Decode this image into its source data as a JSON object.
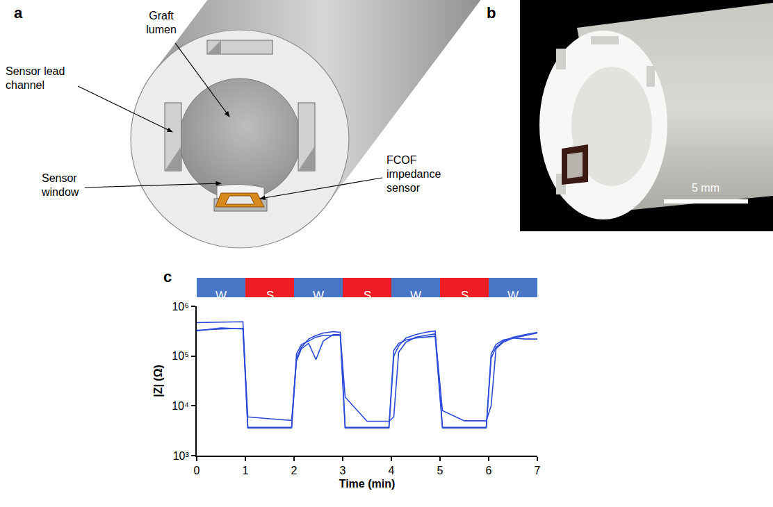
{
  "panels": {
    "a": {
      "letter": "a",
      "labels": [
        {
          "lines": [
            "Graft",
            "lumen"
          ]
        },
        {
          "lines": [
            "Sensor lead",
            "channel"
          ]
        },
        {
          "lines": [
            "Sensor",
            "window"
          ]
        },
        {
          "lines": [
            "FCOF",
            "impedance",
            "sensor"
          ]
        }
      ]
    },
    "b": {
      "letter": "b",
      "scale_bar": "5 mm"
    }
  },
  "chart_data": {
    "type": "line",
    "letter": "c",
    "x_label": "Time (min)",
    "y_label": "|Z| (Ω)",
    "log": "y",
    "grid": false,
    "xlim": [
      0,
      7
    ],
    "xticks": [
      0,
      1,
      2,
      3,
      4,
      5,
      6,
      7
    ],
    "ylim": [
      1000,
      1000000
    ],
    "yticks": [
      {
        "value": 1000,
        "label": "10³"
      },
      {
        "value": 10000,
        "label": "10⁴"
      },
      {
        "value": 100000,
        "label": "10⁵"
      },
      {
        "value": 1000000,
        "label": "10⁶"
      }
    ],
    "phases": [
      {
        "label": "W",
        "start": 0,
        "end": 1,
        "color": "#4a76c6"
      },
      {
        "label": "S",
        "start": 1,
        "end": 2,
        "color": "#ee1c25"
      },
      {
        "label": "W",
        "start": 2,
        "end": 3,
        "color": "#4a76c6"
      },
      {
        "label": "S",
        "start": 3,
        "end": 4,
        "color": "#ee1c25"
      },
      {
        "label": "W",
        "start": 4,
        "end": 5,
        "color": "#4a76c6"
      },
      {
        "label": "S",
        "start": 5,
        "end": 6,
        "color": "#ee1c25"
      },
      {
        "label": "W",
        "start": 6,
        "end": 7,
        "color": "#4a76c6"
      }
    ],
    "x": [
      0,
      0.5,
      0.95,
      1.05,
      1.5,
      1.95,
      2.05,
      2.15,
      2.3,
      2.45,
      2.6,
      2.8,
      2.95,
      3.05,
      3.5,
      3.95,
      4.05,
      4.15,
      4.3,
      4.5,
      4.7,
      4.9,
      5.05,
      5.5,
      5.95,
      6.05,
      6.15,
      6.3,
      6.5,
      6.75,
      7
    ],
    "series": [
      {
        "color": "#2b4ad8",
        "values": [
          470000,
          480000,
          490000,
          3700,
          3700,
          3700,
          90000,
          150000,
          220000,
          260000,
          290000,
          310000,
          300000,
          3700,
          3700,
          3700,
          100000,
          160000,
          230000,
          270000,
          300000,
          320000,
          3700,
          3700,
          3700,
          90000,
          150000,
          200000,
          240000,
          270000,
          300000
        ]
      },
      {
        "color": "#2b4ad8",
        "values": [
          330000,
          350000,
          360000,
          6000,
          5500,
          5100,
          80000,
          140000,
          180000,
          85000,
          200000,
          270000,
          270000,
          15000,
          4900,
          4900,
          6000,
          120000,
          190000,
          240000,
          260000,
          280000,
          8000,
          5000,
          5000,
          10000,
          140000,
          190000,
          230000,
          260000,
          290000
        ]
      },
      {
        "color": "#2b4ad8",
        "values": [
          320000,
          370000,
          350000,
          3600,
          3600,
          3600,
          110000,
          170000,
          200000,
          240000,
          260000,
          260000,
          260000,
          3600,
          3600,
          3600,
          130000,
          180000,
          210000,
          230000,
          240000,
          250000,
          3600,
          3600,
          3600,
          110000,
          170000,
          210000,
          230000,
          220000,
          220000
        ]
      }
    ]
  }
}
